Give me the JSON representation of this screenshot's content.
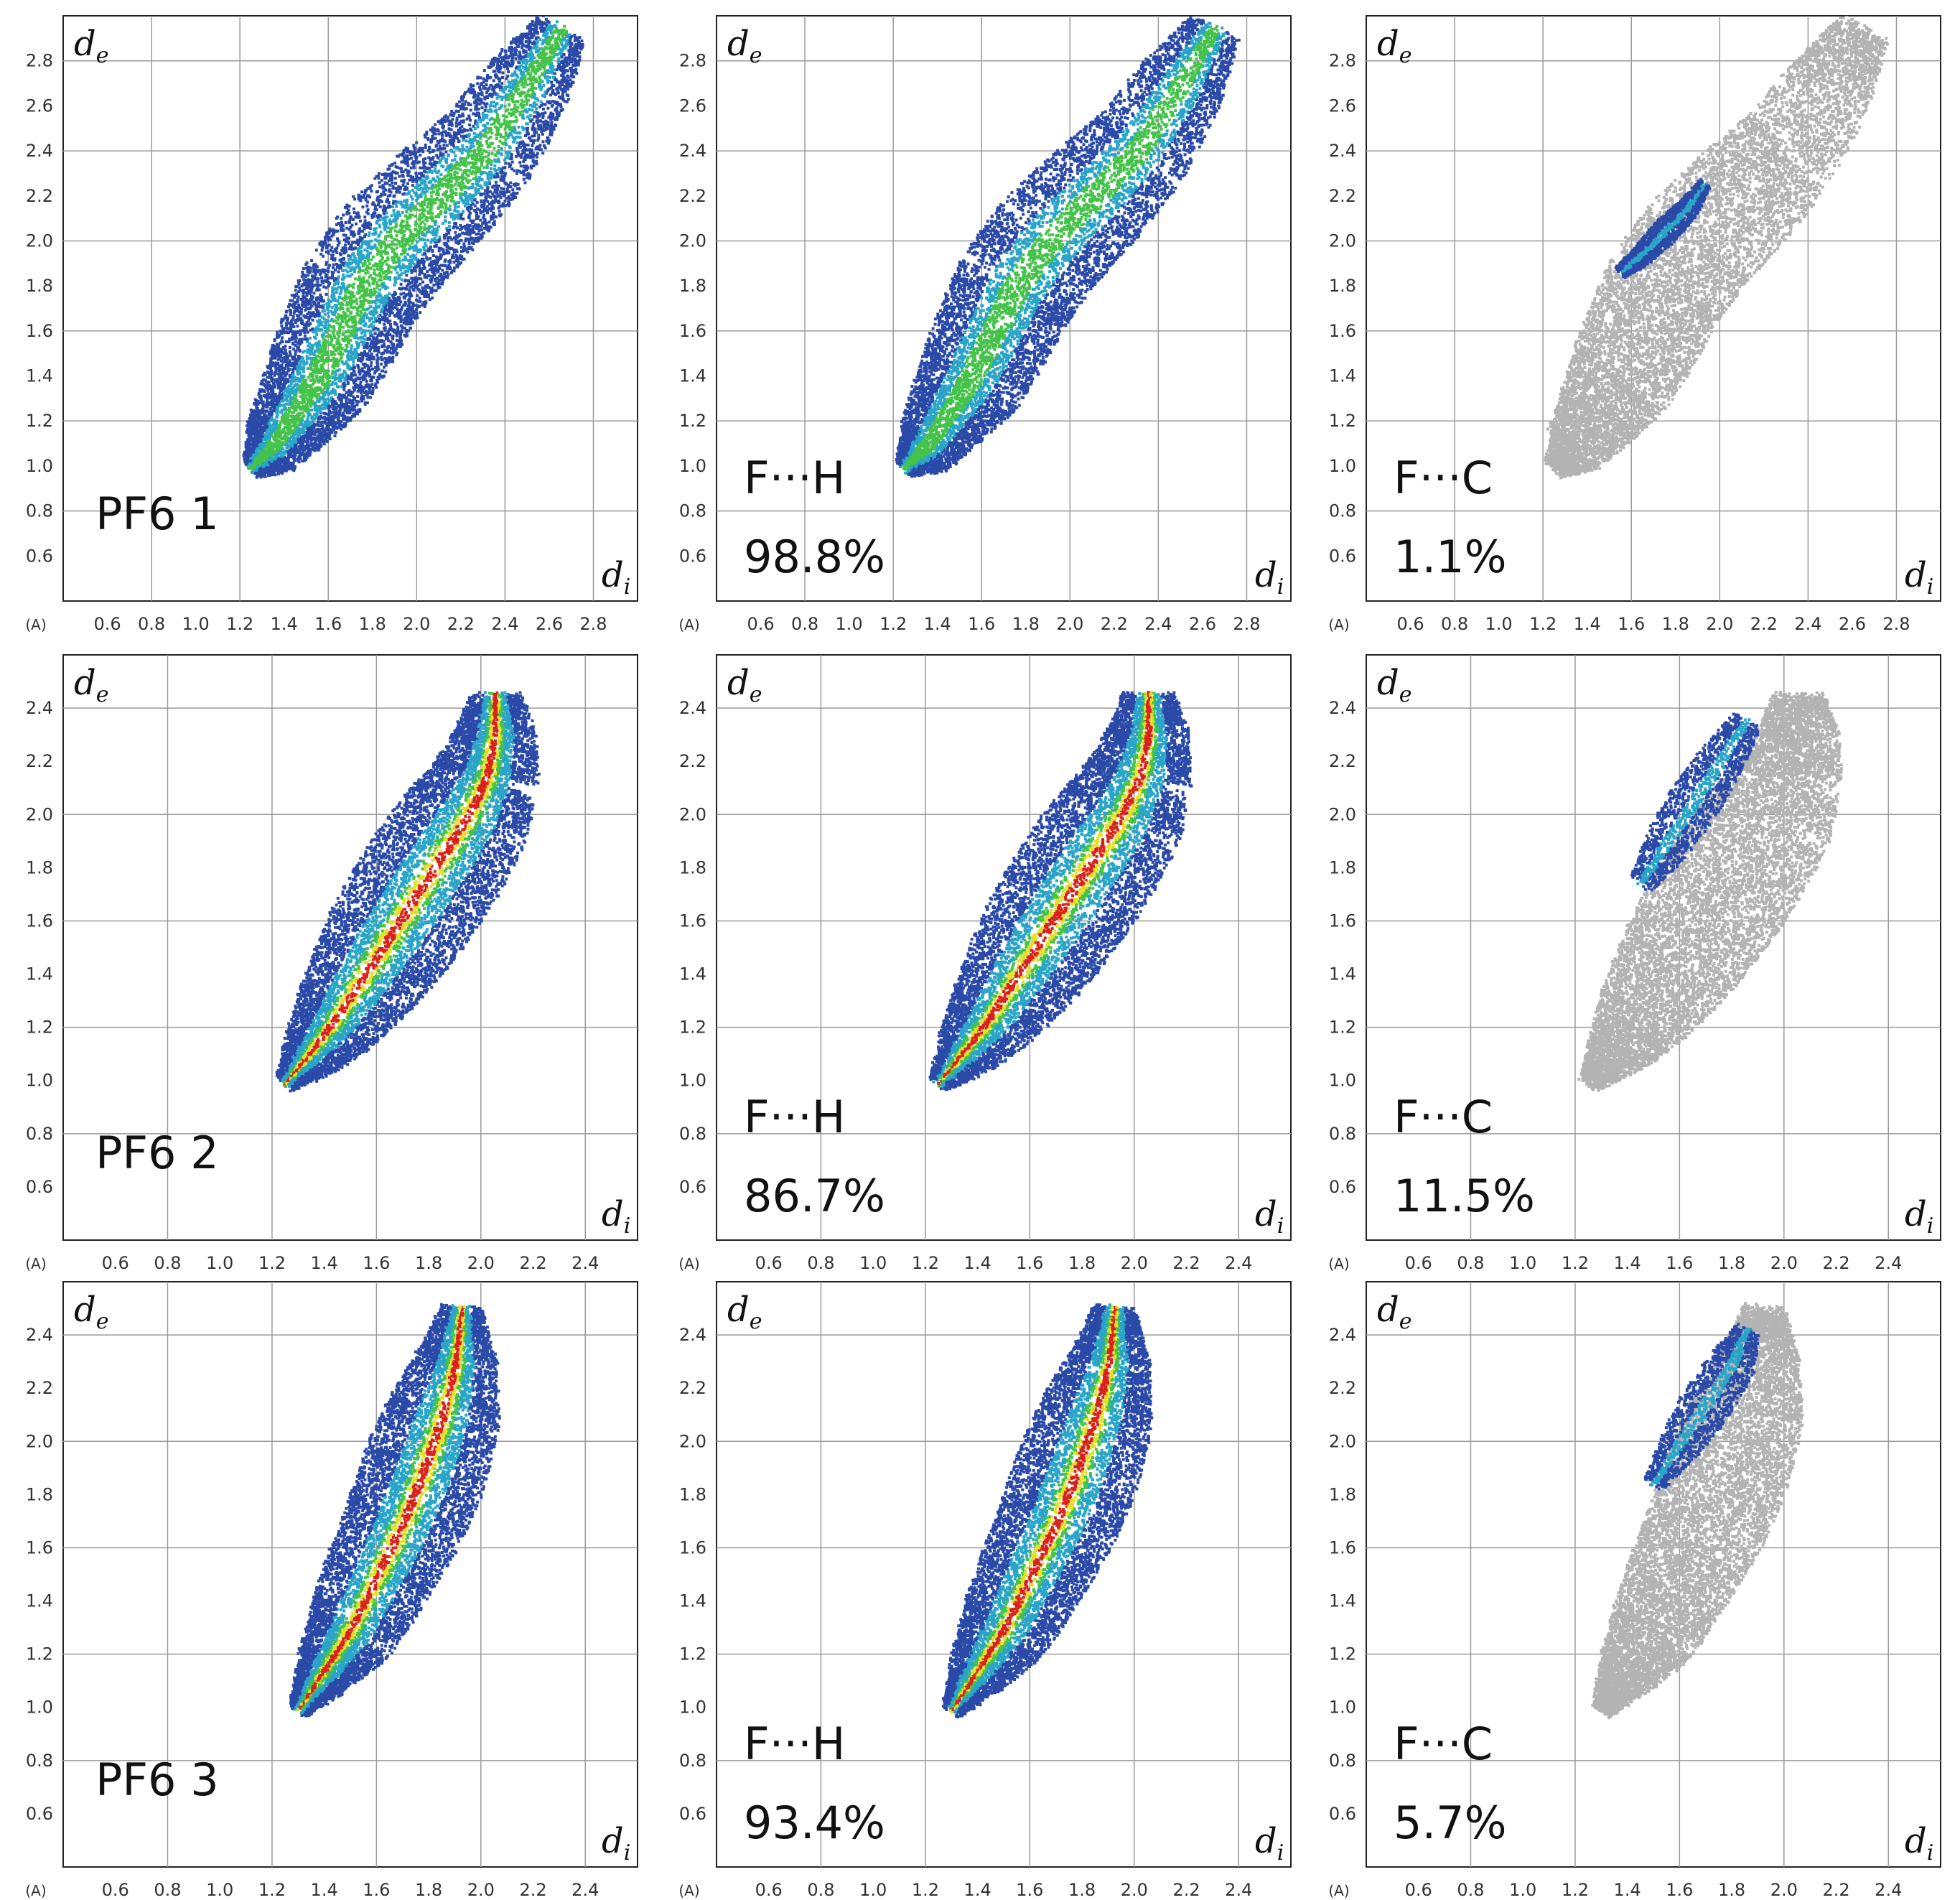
{
  "figure": {
    "unit_label": "(A)",
    "ylabel_main": "d",
    "ylabel_sub": "e",
    "xlabel_main": "d",
    "xlabel_sub": "i",
    "palette": {
      "grey": "#b3b3b3",
      "blue": "#2b4aa8",
      "cyan": "#2aa5c8",
      "green": "#45c24a",
      "yellow": "#e3df2c",
      "red": "#d8221c"
    }
  },
  "chart_data": [
    {
      "type": "scatter",
      "row": 0,
      "col": 0,
      "xlim": [
        0.4,
        3.0
      ],
      "ylim": [
        0.4,
        3.0
      ],
      "xticks": [
        "0.6",
        "0.8",
        "1.0",
        "1.2",
        "1.4",
        "1.6",
        "1.8",
        "2.0",
        "2.2",
        "2.4",
        "2.6",
        "2.8"
      ],
      "yticks": [
        "0.6",
        "0.8",
        "1.0",
        "1.2",
        "1.4",
        "1.6",
        "1.8",
        "2.0",
        "2.2",
        "2.4",
        "2.6",
        "2.8"
      ],
      "xlabel": "di",
      "ylabel": "de",
      "annotation_line1": "PF6 1",
      "annotation_line2": "",
      "highlight": "full",
      "red_points": false,
      "base_points": [
        [
          1.25,
          1.0
        ],
        [
          1.35,
          1.1
        ],
        [
          1.45,
          1.25
        ],
        [
          1.55,
          1.4
        ],
        [
          1.65,
          1.6
        ],
        [
          1.75,
          1.8
        ],
        [
          1.9,
          2.0
        ],
        [
          2.1,
          2.2
        ],
        [
          2.3,
          2.4
        ],
        [
          2.5,
          2.7
        ],
        [
          2.65,
          2.95
        ]
      ],
      "base_width": [
        0.05,
        0.15,
        0.2,
        0.25,
        0.27,
        0.28,
        0.28,
        0.27,
        0.24,
        0.2,
        0.12
      ],
      "highlight_points": [],
      "highlight_width": []
    },
    {
      "type": "scatter",
      "row": 0,
      "col": 1,
      "xlim": [
        0.4,
        3.0
      ],
      "ylim": [
        0.4,
        3.0
      ],
      "xticks": [
        "0.6",
        "0.8",
        "1.0",
        "1.2",
        "1.4",
        "1.6",
        "1.8",
        "2.0",
        "2.2",
        "2.4",
        "2.6",
        "2.8"
      ],
      "yticks": [
        "0.6",
        "0.8",
        "1.0",
        "1.2",
        "1.4",
        "1.6",
        "1.8",
        "2.0",
        "2.2",
        "2.4",
        "2.6",
        "2.8"
      ],
      "xlabel": "di",
      "ylabel": "de",
      "annotation_line1": "F···H",
      "annotation_line2": "98.8%",
      "highlight": "full",
      "red_points": false,
      "base_points": [
        [
          1.25,
          1.0
        ],
        [
          1.35,
          1.1
        ],
        [
          1.45,
          1.25
        ],
        [
          1.55,
          1.4
        ],
        [
          1.65,
          1.6
        ],
        [
          1.75,
          1.8
        ],
        [
          1.9,
          2.0
        ],
        [
          2.1,
          2.2
        ],
        [
          2.3,
          2.4
        ],
        [
          2.5,
          2.7
        ],
        [
          2.65,
          2.95
        ]
      ],
      "base_width": [
        0.05,
        0.15,
        0.2,
        0.25,
        0.27,
        0.28,
        0.28,
        0.27,
        0.24,
        0.2,
        0.12
      ],
      "highlight_points": [],
      "highlight_width": []
    },
    {
      "type": "scatter",
      "row": 0,
      "col": 2,
      "xlim": [
        0.4,
        3.0
      ],
      "ylim": [
        0.4,
        3.0
      ],
      "xticks": [
        "0.6",
        "0.8",
        "1.0",
        "1.2",
        "1.4",
        "1.6",
        "1.8",
        "2.0",
        "2.2",
        "2.4",
        "2.6",
        "2.8"
      ],
      "yticks": [
        "0.6",
        "0.8",
        "1.0",
        "1.2",
        "1.4",
        "1.6",
        "1.8",
        "2.0",
        "2.2",
        "2.4",
        "2.6",
        "2.8"
      ],
      "xlabel": "di",
      "ylabel": "de",
      "annotation_line1": "F···C",
      "annotation_line2": "1.1%",
      "highlight": "partial",
      "red_points": false,
      "base_points": [
        [
          1.25,
          1.0
        ],
        [
          1.35,
          1.1
        ],
        [
          1.45,
          1.25
        ],
        [
          1.55,
          1.4
        ],
        [
          1.65,
          1.6
        ],
        [
          1.75,
          1.8
        ],
        [
          1.9,
          2.0
        ],
        [
          2.1,
          2.2
        ],
        [
          2.3,
          2.4
        ],
        [
          2.5,
          2.7
        ],
        [
          2.65,
          2.95
        ]
      ],
      "base_width": [
        0.05,
        0.15,
        0.2,
        0.25,
        0.27,
        0.28,
        0.28,
        0.27,
        0.24,
        0.2,
        0.12
      ],
      "highlight_points": [
        [
          1.55,
          1.87
        ],
        [
          1.65,
          1.95
        ],
        [
          1.75,
          2.05
        ],
        [
          1.85,
          2.15
        ],
        [
          1.92,
          2.25
        ]
      ],
      "highlight_width": [
        0.03,
        0.05,
        0.06,
        0.05,
        0.03
      ]
    },
    {
      "type": "scatter",
      "row": 1,
      "col": 0,
      "xlim": [
        0.4,
        2.6
      ],
      "ylim": [
        0.4,
        2.6
      ],
      "xticks": [
        "0.6",
        "0.8",
        "1.0",
        "1.2",
        "1.4",
        "1.6",
        "1.8",
        "2.0",
        "2.2",
        "2.4"
      ],
      "yticks": [
        "0.6",
        "0.8",
        "1.0",
        "1.2",
        "1.4",
        "1.6",
        "1.8",
        "2.0",
        "2.2",
        "2.4"
      ],
      "xlabel": "di",
      "ylabel": "de",
      "annotation_line1": "PF6 2",
      "annotation_line2": "",
      "highlight": "full",
      "red_points": true,
      "base_points": [
        [
          1.25,
          1.0
        ],
        [
          1.35,
          1.12
        ],
        [
          1.45,
          1.25
        ],
        [
          1.55,
          1.4
        ],
        [
          1.65,
          1.55
        ],
        [
          1.75,
          1.7
        ],
        [
          1.85,
          1.85
        ],
        [
          1.95,
          2.0
        ],
        [
          2.02,
          2.15
        ],
        [
          2.05,
          2.3
        ],
        [
          2.05,
          2.45
        ]
      ],
      "base_width": [
        0.04,
        0.12,
        0.18,
        0.22,
        0.25,
        0.26,
        0.26,
        0.24,
        0.2,
        0.16,
        0.1
      ],
      "highlight_points": [],
      "highlight_width": []
    },
    {
      "type": "scatter",
      "row": 1,
      "col": 1,
      "xlim": [
        0.4,
        2.6
      ],
      "ylim": [
        0.4,
        2.6
      ],
      "xticks": [
        "0.6",
        "0.8",
        "1.0",
        "1.2",
        "1.4",
        "1.6",
        "1.8",
        "2.0",
        "2.2",
        "2.4"
      ],
      "yticks": [
        "0.6",
        "0.8",
        "1.0",
        "1.2",
        "1.4",
        "1.6",
        "1.8",
        "2.0",
        "2.2",
        "2.4"
      ],
      "xlabel": "di",
      "ylabel": "de",
      "annotation_line1": "F···H",
      "annotation_line2": "86.7%",
      "highlight": "full",
      "red_points": true,
      "base_points": [
        [
          1.25,
          1.0
        ],
        [
          1.35,
          1.12
        ],
        [
          1.45,
          1.25
        ],
        [
          1.55,
          1.4
        ],
        [
          1.65,
          1.55
        ],
        [
          1.75,
          1.7
        ],
        [
          1.85,
          1.85
        ],
        [
          1.95,
          2.0
        ],
        [
          2.02,
          2.15
        ],
        [
          2.05,
          2.3
        ],
        [
          2.05,
          2.45
        ]
      ],
      "base_width": [
        0.04,
        0.12,
        0.18,
        0.22,
        0.25,
        0.26,
        0.26,
        0.24,
        0.2,
        0.16,
        0.1
      ],
      "highlight_points": [],
      "highlight_width": []
    },
    {
      "type": "scatter",
      "row": 1,
      "col": 2,
      "xlim": [
        0.4,
        2.6
      ],
      "ylim": [
        0.4,
        2.6
      ],
      "xticks": [
        "0.6",
        "0.8",
        "1.0",
        "1.2",
        "1.4",
        "1.6",
        "1.8",
        "2.0",
        "2.2",
        "2.4"
      ],
      "yticks": [
        "0.6",
        "0.8",
        "1.0",
        "1.2",
        "1.4",
        "1.6",
        "1.8",
        "2.0",
        "2.2",
        "2.4"
      ],
      "xlabel": "di",
      "ylabel": "de",
      "annotation_line1": "F···C",
      "annotation_line2": "11.5%",
      "highlight": "partial",
      "red_points": false,
      "base_points": [
        [
          1.25,
          1.0
        ],
        [
          1.35,
          1.12
        ],
        [
          1.45,
          1.25
        ],
        [
          1.55,
          1.4
        ],
        [
          1.65,
          1.55
        ],
        [
          1.75,
          1.7
        ],
        [
          1.85,
          1.85
        ],
        [
          1.95,
          2.0
        ],
        [
          2.02,
          2.15
        ],
        [
          2.05,
          2.3
        ],
        [
          2.05,
          2.45
        ]
      ],
      "base_width": [
        0.04,
        0.12,
        0.18,
        0.22,
        0.25,
        0.26,
        0.26,
        0.24,
        0.2,
        0.16,
        0.1
      ],
      "highlight_points": [
        [
          1.45,
          1.75
        ],
        [
          1.55,
          1.9
        ],
        [
          1.65,
          2.05
        ],
        [
          1.75,
          2.2
        ],
        [
          1.85,
          2.35
        ]
      ],
      "highlight_width": [
        0.05,
        0.09,
        0.1,
        0.09,
        0.06
      ]
    },
    {
      "type": "scatter",
      "row": 2,
      "col": 0,
      "xlim": [
        0.4,
        2.6
      ],
      "ylim": [
        0.4,
        2.6
      ],
      "xticks": [
        "0.6",
        "0.8",
        "1.0",
        "1.2",
        "1.4",
        "1.6",
        "1.8",
        "2.0",
        "2.2",
        "2.4"
      ],
      "yticks": [
        "0.6",
        "0.8",
        "1.0",
        "1.2",
        "1.4",
        "1.6",
        "1.8",
        "2.0",
        "2.2",
        "2.4"
      ],
      "xlabel": "di",
      "ylabel": "de",
      "annotation_line1": "PF6 3",
      "annotation_line2": "",
      "highlight": "full",
      "red_points": true,
      "base_points": [
        [
          1.3,
          1.0
        ],
        [
          1.4,
          1.15
        ],
        [
          1.5,
          1.3
        ],
        [
          1.6,
          1.5
        ],
        [
          1.7,
          1.7
        ],
        [
          1.78,
          1.9
        ],
        [
          1.85,
          2.1
        ],
        [
          1.9,
          2.3
        ],
        [
          1.92,
          2.5
        ]
      ],
      "base_width": [
        0.04,
        0.12,
        0.18,
        0.21,
        0.23,
        0.24,
        0.22,
        0.16,
        0.08
      ],
      "highlight_points": [],
      "highlight_width": []
    },
    {
      "type": "scatter",
      "row": 2,
      "col": 1,
      "xlim": [
        0.4,
        2.6
      ],
      "ylim": [
        0.4,
        2.6
      ],
      "xticks": [
        "0.6",
        "0.8",
        "1.0",
        "1.2",
        "1.4",
        "1.6",
        "1.8",
        "2.0",
        "2.2",
        "2.4"
      ],
      "yticks": [
        "0.6",
        "0.8",
        "1.0",
        "1.2",
        "1.4",
        "1.6",
        "1.8",
        "2.0",
        "2.2",
        "2.4"
      ],
      "xlabel": "di",
      "ylabel": "de",
      "annotation_line1": "F···H",
      "annotation_line2": "93.4%",
      "highlight": "full",
      "red_points": true,
      "base_points": [
        [
          1.3,
          1.0
        ],
        [
          1.4,
          1.15
        ],
        [
          1.5,
          1.3
        ],
        [
          1.6,
          1.5
        ],
        [
          1.7,
          1.7
        ],
        [
          1.78,
          1.9
        ],
        [
          1.85,
          2.1
        ],
        [
          1.9,
          2.3
        ],
        [
          1.92,
          2.5
        ]
      ],
      "base_width": [
        0.04,
        0.12,
        0.18,
        0.21,
        0.23,
        0.24,
        0.22,
        0.16,
        0.08
      ],
      "highlight_points": [],
      "highlight_width": []
    },
    {
      "type": "scatter",
      "row": 2,
      "col": 2,
      "xlim": [
        0.4,
        2.6
      ],
      "ylim": [
        0.4,
        2.6
      ],
      "xticks": [
        "0.6",
        "0.8",
        "1.0",
        "1.2",
        "1.4",
        "1.6",
        "1.8",
        "2.0",
        "2.2",
        "2.4"
      ],
      "yticks": [
        "0.6",
        "0.8",
        "1.0",
        "1.2",
        "1.4",
        "1.6",
        "1.8",
        "2.0",
        "2.2",
        "2.4"
      ],
      "xlabel": "di",
      "ylabel": "de",
      "annotation_line1": "F···C",
      "annotation_line2": "5.7%",
      "highlight": "partial",
      "red_points": false,
      "base_points": [
        [
          1.3,
          1.0
        ],
        [
          1.4,
          1.15
        ],
        [
          1.5,
          1.3
        ],
        [
          1.6,
          1.5
        ],
        [
          1.7,
          1.7
        ],
        [
          1.78,
          1.9
        ],
        [
          1.85,
          2.1
        ],
        [
          1.9,
          2.3
        ],
        [
          1.92,
          2.5
        ]
      ],
      "base_width": [
        0.04,
        0.12,
        0.18,
        0.21,
        0.23,
        0.24,
        0.22,
        0.16,
        0.08
      ],
      "highlight_points": [
        [
          1.5,
          1.85
        ],
        [
          1.6,
          2.0
        ],
        [
          1.7,
          2.15
        ],
        [
          1.8,
          2.3
        ],
        [
          1.85,
          2.42
        ]
      ],
      "highlight_width": [
        0.04,
        0.08,
        0.1,
        0.09,
        0.05
      ]
    }
  ]
}
